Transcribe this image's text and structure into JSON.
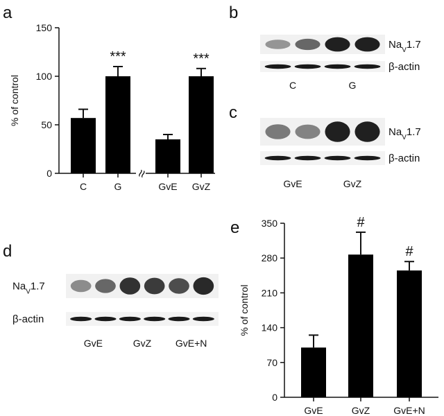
{
  "figure": {
    "panel_labels": {
      "a": "a",
      "b": "b",
      "c": "c",
      "d": "d",
      "e": "e"
    }
  },
  "blots": {
    "b": {
      "lanes": 4,
      "nav_label": "Na",
      "nav_sub": "V",
      "nav_tail": "1.7",
      "actin_label": "β-actin",
      "groups": [
        "C",
        "G"
      ],
      "intensities": [
        0.3,
        0.55,
        0.95,
        0.95
      ]
    },
    "c": {
      "lanes": 4,
      "nav_label": "Na",
      "nav_sub": "V",
      "nav_tail": "1.7",
      "actin_label": "β-actin",
      "groups": [
        "GvE",
        "GvZ"
      ],
      "intensities": [
        0.45,
        0.4,
        0.95,
        0.95
      ]
    },
    "d": {
      "lanes": 6,
      "nav_label": "Na",
      "nav_sub": "V",
      "nav_tail": "1.7",
      "actin_label": "β-actin",
      "groups": [
        "GvE",
        "GvZ",
        "GvE+N"
      ],
      "intensities": [
        0.35,
        0.55,
        0.85,
        0.8,
        0.7,
        0.9
      ]
    }
  },
  "chart_data": [
    {
      "type": "bar",
      "panel": "a",
      "ylabel": "% of control",
      "ylim": [
        0,
        150
      ],
      "yticks": [
        "0",
        "50",
        "100",
        "150"
      ],
      "categories": [
        "C",
        "G",
        "GvE",
        "GvZ"
      ],
      "values": [
        57,
        100,
        35,
        100
      ],
      "errors": [
        9,
        10,
        5,
        8
      ],
      "annotations": [
        "",
        "***",
        "",
        "***"
      ],
      "axis_break": "≈",
      "grid": false
    },
    {
      "type": "bar",
      "panel": "e",
      "ylabel": "% of control",
      "ylim": [
        0,
        350
      ],
      "yticks": [
        "0",
        "70",
        "140",
        "210",
        "280",
        "350"
      ],
      "categories": [
        "GvE",
        "GvZ",
        "GvE+N"
      ],
      "values": [
        100,
        287,
        255
      ],
      "errors": [
        25,
        45,
        18
      ],
      "annotations": [
        "",
        "#",
        "#"
      ],
      "grid": false
    }
  ]
}
